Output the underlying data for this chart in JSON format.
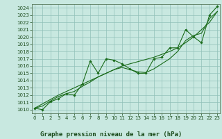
{
  "title": "Graphe pression niveau de la mer (hPa)",
  "x_values": [
    0,
    1,
    2,
    3,
    4,
    5,
    6,
    7,
    8,
    9,
    10,
    11,
    12,
    13,
    14,
    15,
    16,
    17,
    18,
    19,
    20,
    21,
    22,
    23
  ],
  "series_main": [
    1010.2,
    1010.0,
    1011.1,
    1011.5,
    1012.2,
    1012.0,
    1013.5,
    1016.7,
    1015.0,
    1017.0,
    1016.8,
    1016.3,
    1015.6,
    1015.0,
    1015.0,
    1017.0,
    1017.2,
    1018.5,
    1018.5,
    1021.0,
    1020.0,
    1019.2,
    1023.0,
    1024.2
  ],
  "series_smooth": [
    1010.2,
    1010.5,
    1011.2,
    1011.8,
    1012.2,
    1012.5,
    1013.2,
    1013.8,
    1014.5,
    1015.0,
    1015.5,
    1015.8,
    1015.5,
    1015.2,
    1015.1,
    1015.6,
    1016.3,
    1017.0,
    1018.0,
    1019.5,
    1020.2,
    1020.5,
    1022.5,
    1023.5
  ],
  "series_linear": [
    1010.2,
    1010.8,
    1011.4,
    1012.0,
    1012.5,
    1013.0,
    1013.5,
    1014.0,
    1014.5,
    1015.0,
    1015.5,
    1016.0,
    1016.3,
    1016.6,
    1016.9,
    1017.2,
    1017.6,
    1018.0,
    1018.5,
    1019.2,
    1020.0,
    1021.0,
    1022.0,
    1023.5
  ],
  "line_color": "#1a6b1a",
  "marker_color": "#1a6b1a",
  "bg_color": "#c8e8e0",
  "grid_color": "#90c0b8",
  "ylim": [
    1009.5,
    1024.5
  ],
  "xlim": [
    -0.3,
    23.3
  ],
  "yticks": [
    1010,
    1011,
    1012,
    1013,
    1014,
    1015,
    1016,
    1017,
    1018,
    1019,
    1020,
    1021,
    1022,
    1023,
    1024
  ],
  "xticks": [
    0,
    1,
    2,
    3,
    4,
    5,
    6,
    7,
    8,
    9,
    10,
    11,
    12,
    13,
    14,
    15,
    16,
    17,
    18,
    19,
    20,
    21,
    22,
    23
  ],
  "title_fontsize": 6.5,
  "tick_fontsize": 5.0,
  "label_color": "#1a4a1a"
}
